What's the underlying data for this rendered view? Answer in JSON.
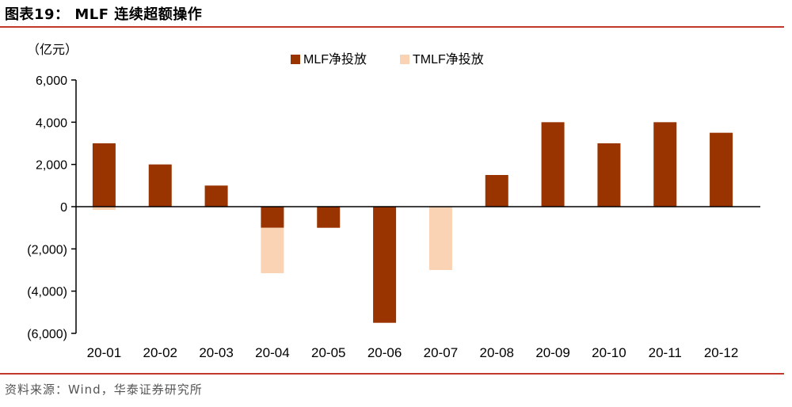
{
  "header": {
    "title": "图表19：  MLF 连续超额操作"
  },
  "footer": {
    "source": "资料来源：Wind，华泰证券研究所"
  },
  "colors": {
    "rule": "#c0392b",
    "mlf": "#993300",
    "tmlf": "#f9d3b3",
    "axis": "#000000"
  },
  "chart_data": {
    "type": "bar",
    "stacked": true,
    "categories": [
      "20-01",
      "20-02",
      "20-03",
      "20-04",
      "20-05",
      "20-06",
      "20-07",
      "20-08",
      "20-09",
      "20-10",
      "20-11",
      "20-12"
    ],
    "series": [
      {
        "name": "MLF净投放",
        "color": "#993300",
        "values": [
          3000,
          2000,
          1000,
          -1000,
          -1000,
          -5500,
          0,
          1500,
          4000,
          3000,
          4000,
          3500
        ]
      },
      {
        "name": "TMLF净投放",
        "color": "#f9d3b3",
        "values": [
          -150,
          0,
          0,
          -2150,
          0,
          0,
          -3000,
          0,
          0,
          0,
          0,
          0
        ]
      }
    ],
    "ylabel": "（亿元）",
    "ylim": [
      -6000,
      6000
    ],
    "yticks": [
      6000,
      4000,
      2000,
      0,
      -2000,
      -4000,
      -6000
    ],
    "ytick_labels": [
      "6,000",
      "4,000",
      "2,000",
      "0",
      "(2,000)",
      "(4,000)",
      "(6,000)"
    ],
    "legend_position": "top-center",
    "grid": false
  }
}
